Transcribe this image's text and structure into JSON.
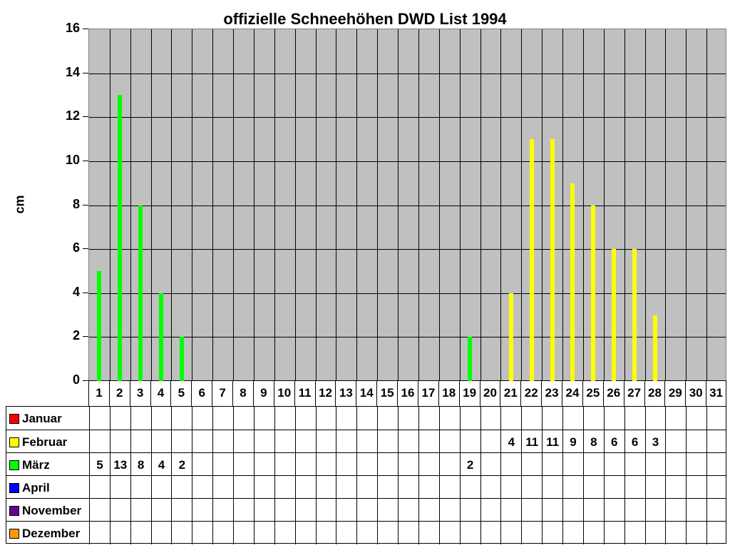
{
  "chart_data": {
    "type": "bar",
    "title": "offizielle Schneehöhen DWD List 1994",
    "xlabel": "",
    "ylabel": "cm",
    "ylim": [
      0,
      16
    ],
    "yticks": [
      0,
      2,
      4,
      6,
      8,
      10,
      12,
      14,
      16
    ],
    "grid": true,
    "legend_position": "data-table-left",
    "categories": [
      "1",
      "2",
      "3",
      "4",
      "5",
      "6",
      "7",
      "8",
      "9",
      "10",
      "11",
      "12",
      "13",
      "14",
      "15",
      "16",
      "17",
      "18",
      "19",
      "20",
      "21",
      "22",
      "23",
      "24",
      "25",
      "26",
      "27",
      "28",
      "29",
      "30",
      "31"
    ],
    "series": [
      {
        "name": "Januar",
        "color": "#ff0000",
        "values": [
          null,
          null,
          null,
          null,
          null,
          null,
          null,
          null,
          null,
          null,
          null,
          null,
          null,
          null,
          null,
          null,
          null,
          null,
          null,
          null,
          null,
          null,
          null,
          null,
          null,
          null,
          null,
          null,
          null,
          null,
          null
        ]
      },
      {
        "name": "Februar",
        "color": "#ffff00",
        "values": [
          null,
          null,
          null,
          null,
          null,
          null,
          null,
          null,
          null,
          null,
          null,
          null,
          null,
          null,
          null,
          null,
          null,
          null,
          null,
          null,
          4,
          11,
          11,
          9,
          8,
          6,
          6,
          3,
          null,
          null,
          null
        ]
      },
      {
        "name": "März",
        "color": "#00ff00",
        "values": [
          5,
          13,
          8,
          4,
          2,
          null,
          null,
          null,
          null,
          null,
          null,
          null,
          null,
          null,
          null,
          null,
          null,
          null,
          2,
          null,
          null,
          null,
          null,
          null,
          null,
          null,
          null,
          null,
          null,
          null,
          null
        ]
      },
      {
        "name": "April",
        "color": "#0000ff",
        "values": [
          null,
          null,
          null,
          null,
          null,
          null,
          null,
          null,
          null,
          null,
          null,
          null,
          null,
          null,
          null,
          null,
          null,
          null,
          null,
          null,
          null,
          null,
          null,
          null,
          null,
          null,
          null,
          null,
          null,
          null,
          null
        ]
      },
      {
        "name": "November",
        "color": "#660099",
        "values": [
          null,
          null,
          null,
          null,
          null,
          null,
          null,
          null,
          null,
          null,
          null,
          null,
          null,
          null,
          null,
          null,
          null,
          null,
          null,
          null,
          null,
          null,
          null,
          null,
          null,
          null,
          null,
          null,
          null,
          null,
          null
        ]
      },
      {
        "name": "Dezember",
        "color": "#ff9900",
        "values": [
          null,
          null,
          null,
          null,
          null,
          null,
          null,
          null,
          null,
          null,
          null,
          null,
          null,
          null,
          null,
          null,
          null,
          null,
          null,
          null,
          null,
          null,
          null,
          null,
          null,
          null,
          null,
          null,
          null,
          null,
          null
        ]
      }
    ]
  }
}
